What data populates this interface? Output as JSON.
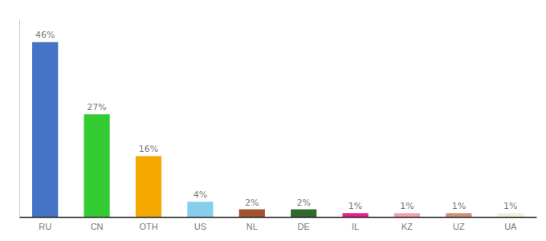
{
  "chart_data": {
    "type": "bar",
    "categories": [
      "RU",
      "CN",
      "OTH",
      "US",
      "NL",
      "DE",
      "IL",
      "KZ",
      "UZ",
      "UA"
    ],
    "values": [
      46,
      27,
      16,
      4,
      2,
      2,
      1,
      1,
      1,
      1
    ],
    "value_labels": [
      "46%",
      "27%",
      "16%",
      "4%",
      "2%",
      "2%",
      "1%",
      "1%",
      "1%",
      "1%"
    ],
    "colors": [
      "#4472c4",
      "#33cc33",
      "#f5a800",
      "#87ceeb",
      "#a0522d",
      "#2d6a2d",
      "#e91e8c",
      "#f4a0b0",
      "#d2907a",
      "#f5f0d8"
    ],
    "ylim": [
      0,
      52
    ],
    "data_labels": true,
    "tick_labels": "x",
    "grid": false
  }
}
